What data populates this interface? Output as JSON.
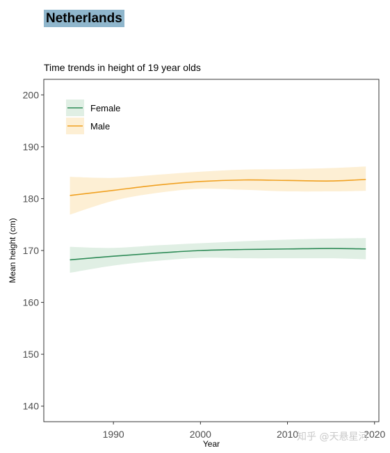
{
  "page": {
    "badge_title": "Netherlands",
    "watermark": "知乎 @天悬星河"
  },
  "chart_data": {
    "type": "line",
    "title": "Netherlands",
    "subtitle": "Time trends in height of 19 year olds",
    "xlabel": "Year",
    "ylabel": "Mean height (cm)",
    "xlim": [
      1982,
      2020.5
    ],
    "ylim": [
      137,
      203
    ],
    "xticks": [
      1990,
      2000,
      2010,
      2020
    ],
    "yticks": [
      140,
      150,
      160,
      170,
      180,
      190,
      200
    ],
    "grid": false,
    "legend_position": "top-left",
    "series": [
      {
        "name": "Female",
        "color": "#2e8b57",
        "band_color": "#e0efe4",
        "x": [
          1985,
          1990,
          1995,
          2000,
          2005,
          2010,
          2015,
          2019
        ],
        "y": [
          168.2,
          168.9,
          169.5,
          170.0,
          170.2,
          170.3,
          170.4,
          170.3
        ],
        "lower": [
          165.7,
          167.1,
          168.0,
          168.6,
          168.5,
          168.5,
          168.5,
          168.3
        ],
        "upper": [
          170.7,
          170.5,
          171.0,
          171.4,
          171.8,
          172.1,
          172.3,
          172.4
        ]
      },
      {
        "name": "Male",
        "color": "#f0a020",
        "band_color": "#fdefd4",
        "x": [
          1985,
          1990,
          1995,
          2000,
          2005,
          2010,
          2015,
          2019
        ],
        "y": [
          180.6,
          181.6,
          182.6,
          183.3,
          183.6,
          183.5,
          183.4,
          183.7
        ],
        "lower": [
          176.9,
          179.6,
          181.1,
          181.9,
          181.7,
          181.4,
          181.4,
          181.5
        ],
        "upper": [
          184.2,
          184.0,
          184.6,
          185.2,
          185.6,
          185.7,
          185.9,
          186.2
        ]
      }
    ]
  }
}
